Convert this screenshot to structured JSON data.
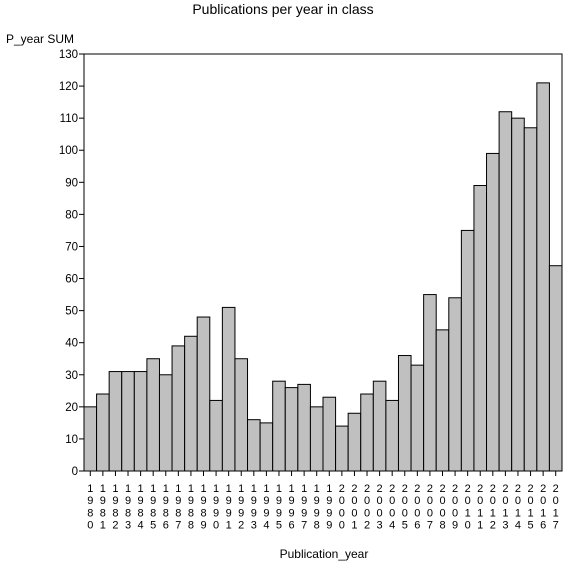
{
  "chart_data": {
    "type": "bar",
    "title": "Publications per year in class",
    "ylabel": "P_year SUM",
    "xlabel": "Publication_year",
    "ylim": [
      0,
      130
    ],
    "yticks": [
      0,
      10,
      20,
      30,
      40,
      50,
      60,
      70,
      80,
      90,
      100,
      110,
      120,
      130
    ],
    "grid": false,
    "bar_color": "#c0c0c0",
    "categories": [
      "1980",
      "1981",
      "1982",
      "1983",
      "1984",
      "1985",
      "1986",
      "1987",
      "1988",
      "1989",
      "1990",
      "1991",
      "1992",
      "1993",
      "1994",
      "1995",
      "1996",
      "1997",
      "1998",
      "1999",
      "2000",
      "2001",
      "2002",
      "2003",
      "2004",
      "2005",
      "2006",
      "2007",
      "2008",
      "2009",
      "2010",
      "2011",
      "2012",
      "2013",
      "2014",
      "2015",
      "2016",
      "2017"
    ],
    "values": [
      20,
      24,
      31,
      31,
      31,
      35,
      30,
      39,
      42,
      48,
      22,
      51,
      35,
      16,
      15,
      28,
      26,
      27,
      20,
      23,
      14,
      18,
      24,
      28,
      22,
      36,
      33,
      55,
      44,
      54,
      75,
      89,
      99,
      112,
      110,
      107,
      121,
      64
    ]
  }
}
